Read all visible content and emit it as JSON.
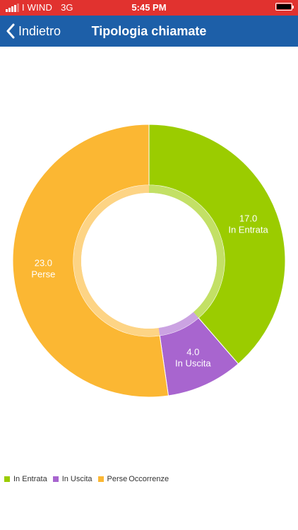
{
  "status_bar": {
    "carrier": "I WIND",
    "network": "3G",
    "time": "5:45 PM",
    "battery_icon": "battery-full-icon",
    "signal_icon": "signal-bars-icon"
  },
  "nav": {
    "back_label": "Indietro",
    "back_icon": "chevron-left-icon",
    "title": "Tipologia chiamate"
  },
  "colors": {
    "status_bar_bg": "#e1322f",
    "nav_bg": "#1d5fa8",
    "in_entrata": "#9bcc00",
    "in_uscita": "#a865cf",
    "perse": "#fbb733"
  },
  "chart_data": {
    "type": "pie",
    "variant": "donut",
    "title": "",
    "description": "Occorrenze",
    "slices": [
      {
        "label": "In Entrata",
        "value": 17.0,
        "display": "17.0",
        "color": "#9bcc00"
      },
      {
        "label": "In Uscita",
        "value": 4.0,
        "display": "4.0",
        "color": "#a865cf"
      },
      {
        "label": "Perse",
        "value": 23.0,
        "display": "23.0",
        "color": "#fbb733"
      }
    ],
    "legend_position": "bottom-left"
  }
}
